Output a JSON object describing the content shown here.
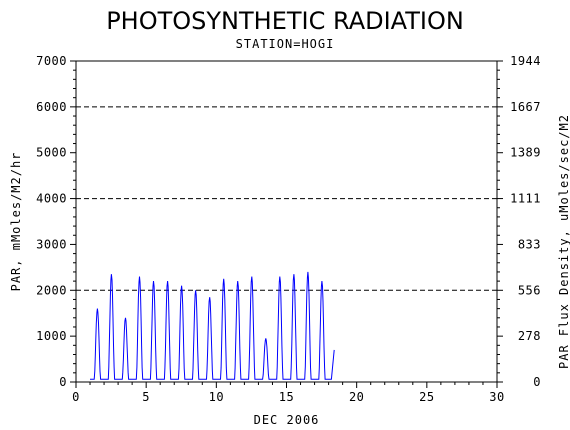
{
  "chart_data": {
    "type": "line",
    "title": "PHOTOSYNTHETIC RADIATION",
    "subtitle": "STATION=HOGI",
    "xlabel": "DEC 2006",
    "ylabel": "PAR, mMoles/M2/hr",
    "ylabel_right": "PAR Flux Density, uMoles/sec/M2",
    "xlim": [
      0,
      30
    ],
    "ylim": [
      0,
      7000
    ],
    "x_ticks": [
      0,
      5,
      10,
      15,
      20,
      25,
      30
    ],
    "y_ticks": [
      0,
      1000,
      2000,
      3000,
      4000,
      5000,
      6000,
      7000
    ],
    "y_ticks_right": [
      {
        "value": 0,
        "label": "0"
      },
      {
        "value": 1000,
        "label": "278"
      },
      {
        "value": 2000,
        "label": "556"
      },
      {
        "value": 3000,
        "label": "833"
      },
      {
        "value": 4000,
        "label": "1111"
      },
      {
        "value": 5000,
        "label": "1389"
      },
      {
        "value": 6000,
        "label": "1667"
      },
      {
        "value": 7000,
        "label": "1944"
      }
    ],
    "gridlines_y": [
      2000,
      4000,
      6000
    ],
    "grid": "dashed horizontal at 2000, 4000, 6000",
    "series": [
      {
        "color": "#0000ff",
        "daily_peaks": [
          {
            "day": 1,
            "peak": 1600
          },
          {
            "day": 2,
            "peak": 2350
          },
          {
            "day": 3,
            "peak": 1400
          },
          {
            "day": 4,
            "peak": 2300
          },
          {
            "day": 5,
            "peak": 2200
          },
          {
            "day": 6,
            "peak": 2200
          },
          {
            "day": 7,
            "peak": 2100
          },
          {
            "day": 8,
            "peak": 2000
          },
          {
            "day": 9,
            "peak": 1850
          },
          {
            "day": 10,
            "peak": 2250
          },
          {
            "day": 11,
            "peak": 2200
          },
          {
            "day": 12,
            "peak": 2300
          },
          {
            "day": 13,
            "peak": 950
          },
          {
            "day": 14,
            "peak": 2300
          },
          {
            "day": 15,
            "peak": 2350
          },
          {
            "day": 16,
            "peak": 2400
          },
          {
            "day": 17,
            "peak": 2200
          }
        ],
        "final_value": 700,
        "end_day": 18.4
      }
    ]
  }
}
